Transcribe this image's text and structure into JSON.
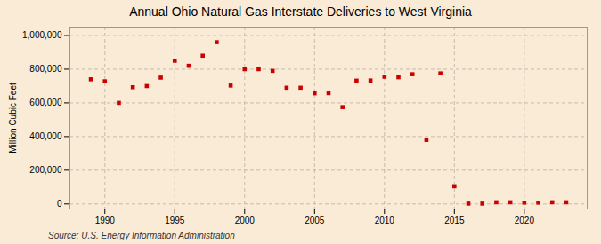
{
  "chart_data": {
    "type": "scatter",
    "title": "Annual Ohio Natural Gas Interstate Deliveries to West Virginia",
    "ylabel": "Million Cubic Feet",
    "source": "Source: U.S. Energy Information Administration",
    "x": [
      1989,
      1990,
      1991,
      1992,
      1993,
      1994,
      1995,
      1996,
      1997,
      1998,
      1999,
      2000,
      2001,
      2002,
      2003,
      2004,
      2005,
      2006,
      2007,
      2008,
      2009,
      2010,
      2011,
      2012,
      2013,
      2014,
      2015,
      2016,
      2017,
      2018,
      2019,
      2020,
      2021,
      2022,
      2023
    ],
    "values": [
      740000,
      728000,
      600000,
      693000,
      700000,
      750000,
      850000,
      820000,
      880000,
      960000,
      703000,
      800000,
      800000,
      790000,
      690000,
      690000,
      657000,
      658000,
      575000,
      732000,
      733000,
      755000,
      752000,
      770000,
      380000,
      775000,
      105000,
      2000,
      2000,
      10000,
      10000,
      8000,
      8000,
      10000,
      10000
    ],
    "color": "#cc0000",
    "marker": "square",
    "xlim": [
      1987.5,
      2024.5
    ],
    "xticks": [
      1990,
      1995,
      2000,
      2005,
      2010,
      2015,
      2020
    ],
    "ylim": [
      -30000,
      1050000
    ],
    "yticks": [
      0,
      {
        "value": 200000,
        "label": "200,000"
      },
      {
        "value": 400000,
        "label": "400,000"
      },
      {
        "value": 600000,
        "label": "600,000"
      },
      {
        "value": 800000,
        "label": "800,000"
      },
      {
        "value": 1000000,
        "label": "1,000,000"
      }
    ],
    "grid": true
  }
}
